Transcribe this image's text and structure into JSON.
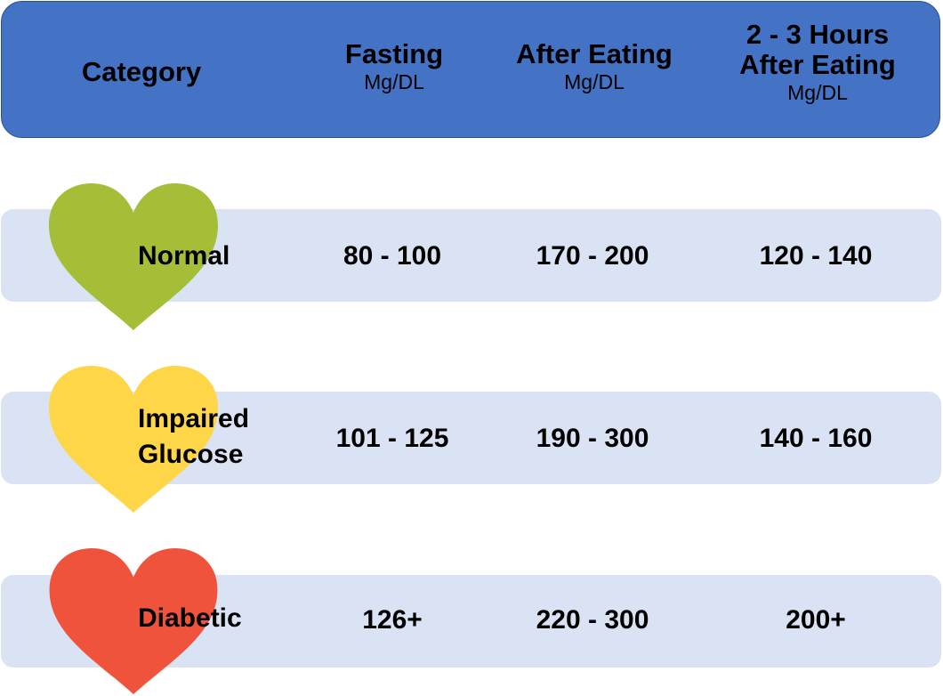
{
  "colors": {
    "header_bg": "#4472C4",
    "row_bg": "#DAE3F3",
    "normal_heart": "#A5BE37",
    "impaired_heart": "#FFD647",
    "diabetic_heart": "#EF533C"
  },
  "header": {
    "category": "Category",
    "fasting": {
      "title": "Fasting",
      "unit": "Mg/DL"
    },
    "after_eating": {
      "title": "After Eating",
      "unit": "Mg/DL"
    },
    "two_three_hours": {
      "title_line1": "2 - 3 Hours",
      "title_line2": "After Eating",
      "unit": "Mg/DL"
    }
  },
  "rows": [
    {
      "category_line1": "Normal",
      "category_line2": "",
      "icon": "green-heart-icon",
      "fasting": "80 - 100",
      "after_eating": "170 - 200",
      "two_three_hours": "120 - 140"
    },
    {
      "category_line1": "Impaired",
      "category_line2": "Glucose",
      "icon": "yellow-heart-icon",
      "fasting": "101 - 125",
      "after_eating": "190 - 300",
      "two_three_hours": "140 - 160"
    },
    {
      "category_line1": "Diabetic",
      "category_line2": "",
      "icon": "red-heart-icon",
      "fasting": "126+",
      "after_eating": "220 - 300",
      "two_three_hours": "200+"
    }
  ]
}
